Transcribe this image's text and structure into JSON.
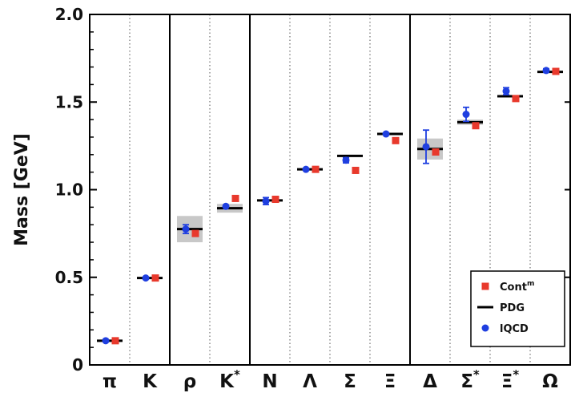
{
  "chart_data": {
    "type": "scatter",
    "ylabel": "Mass [GeV]",
    "ylim": [
      0,
      2.0
    ],
    "yticks": [
      "0",
      "0.5",
      "1.0",
      "1.5",
      "2.0"
    ],
    "categories": [
      {
        "base": "π",
        "sup": ""
      },
      {
        "base": "K",
        "sup": ""
      },
      {
        "base": "ρ",
        "sup": ""
      },
      {
        "base": "K",
        "sup": "*"
      },
      {
        "base": "N",
        "sup": ""
      },
      {
        "base": "Λ",
        "sup": ""
      },
      {
        "base": "Σ",
        "sup": ""
      },
      {
        "base": "Ξ",
        "sup": ""
      },
      {
        "base": "Δ",
        "sup": ""
      },
      {
        "base": "Σ",
        "sup": "*"
      },
      {
        "base": "Ξ",
        "sup": "*"
      },
      {
        "base": "Ω",
        "sup": ""
      }
    ],
    "group_separators_after": [
      1,
      3,
      7
    ],
    "series": [
      {
        "name": "PDG",
        "marker": "line",
        "color": "#000000",
        "values": [
          0.138,
          0.496,
          0.775,
          0.894,
          0.939,
          1.116,
          1.193,
          1.318,
          1.232,
          1.385,
          1.533,
          1.672
        ],
        "bands": [
          0,
          0,
          0.075,
          0.025,
          0,
          0,
          0,
          0,
          0.06,
          0.015,
          0,
          0
        ]
      },
      {
        "name": "lQCD",
        "marker": "circle",
        "color": "#1f3fe0",
        "values": [
          0.138,
          0.496,
          0.775,
          0.905,
          0.935,
          1.116,
          1.168,
          1.318,
          1.245,
          1.43,
          1.562,
          1.68
        ],
        "errors": [
          0,
          0,
          0.025,
          0,
          0.02,
          0,
          0.015,
          0,
          0.095,
          0.04,
          0.02,
          0.01
        ]
      },
      {
        "name": "Cont",
        "name_sup": "m",
        "marker": "square",
        "color": "#e8392c",
        "values": [
          0.138,
          0.496,
          0.75,
          0.95,
          0.945,
          1.116,
          1.11,
          1.28,
          1.215,
          1.365,
          1.52,
          1.675
        ]
      }
    ],
    "legend": {
      "position": "bottom-right",
      "order": [
        "Cont",
        "PDG",
        "lQCD"
      ]
    },
    "grid": "dotted vertical category lines",
    "colors": {
      "band": "#c8c8c8",
      "separator": "#000000"
    }
  }
}
